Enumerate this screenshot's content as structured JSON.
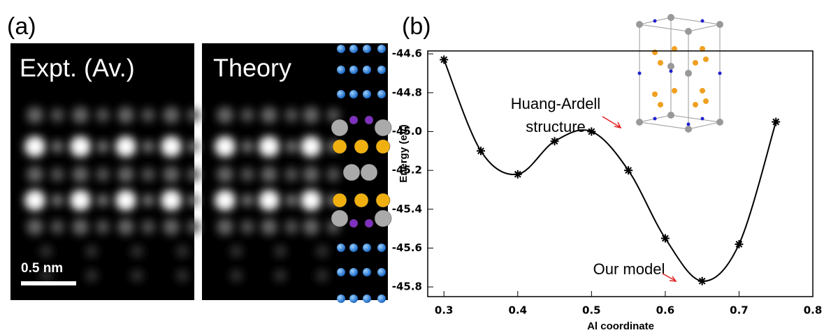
{
  "panel_a": {
    "label": "(a)",
    "image_labels": [
      "Expt. (Av.)",
      "Theory"
    ],
    "scale_bar": "0.5 nm"
  },
  "chart_data": {
    "type": "line",
    "panel_label": "(b)",
    "xlabel": "Al coordinate",
    "ylabel": "Energy (eV)",
    "color": "#000000",
    "x": [
      0.3,
      0.35,
      0.4,
      0.45,
      0.5,
      0.55,
      0.6,
      0.65,
      0.7,
      0.75
    ],
    "values": [
      -44.63,
      -45.1,
      -45.22,
      -45.05,
      -45.0,
      -45.2,
      -45.55,
      -45.77,
      -45.58,
      -44.95
    ],
    "xlim": [
      0.278,
      0.8
    ],
    "ylim": [
      -45.85,
      -44.585
    ],
    "xticks": [
      0.3,
      0.4,
      0.5,
      0.6,
      0.7,
      0.8
    ],
    "yticks": [
      -44.6,
      -44.8,
      {
        "value": -45.0,
        "label": "-45.0"
      },
      -45.2,
      -45.4,
      -45.6,
      -45.8
    ],
    "annotations": [
      {
        "lines": [
          "Huang-Ardell",
          "structure"
        ]
      },
      {
        "lines": [
          "Our model"
        ]
      }
    ]
  }
}
